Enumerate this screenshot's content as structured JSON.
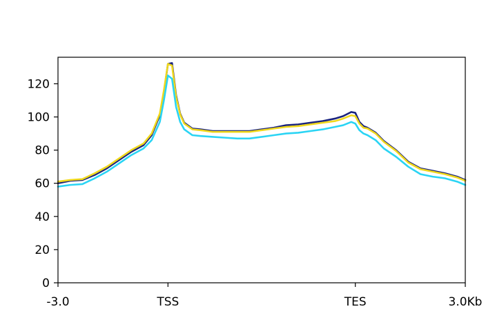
{
  "chart_data": {
    "type": "line",
    "title": "",
    "xlabel": "",
    "ylabel": "",
    "ylim": [
      0,
      136
    ],
    "yticks": [
      0,
      20,
      40,
      60,
      80,
      100,
      120
    ],
    "ytick_labels": [
      "0",
      "20",
      "40",
      "60",
      "80",
      "100",
      "120"
    ],
    "xlim": [
      0,
      100
    ],
    "xticks": [
      0,
      27,
      73,
      100
    ],
    "xtick_labels": [
      "-3.0",
      "TSS",
      "TES",
      "3.0Kb"
    ],
    "grid": false,
    "legend": "none",
    "series": [
      {
        "color": "#1a237e",
        "x": [
          0,
          3,
          6,
          9,
          12,
          15,
          18,
          21,
          23,
          25,
          26,
          27,
          28,
          29,
          30,
          31,
          33,
          35,
          38,
          41,
          44,
          47,
          50,
          53,
          56,
          59,
          62,
          65,
          68,
          70,
          72,
          73,
          74,
          75,
          76,
          78,
          80,
          83,
          86,
          89,
          92,
          95,
          98,
          100
        ],
        "y": [
          60,
          61.5,
          62,
          65,
          69,
          74,
          79,
          83,
          89,
          101,
          115,
          132,
          132.5,
          113,
          102,
          96.5,
          93,
          92.5,
          91.5,
          91.5,
          91.5,
          91.5,
          92.5,
          93.5,
          95,
          95.5,
          96.5,
          97.5,
          99,
          100.5,
          103,
          102.5,
          97,
          94.5,
          93.5,
          90.5,
          85.5,
          80,
          73,
          69,
          67.5,
          66,
          64,
          62
        ]
      },
      {
        "color": "#f0d81c",
        "x": [
          0,
          3,
          6,
          9,
          12,
          15,
          18,
          21,
          23,
          25,
          26,
          27,
          28,
          29,
          30,
          31,
          33,
          35,
          38,
          41,
          44,
          47,
          50,
          53,
          56,
          59,
          62,
          65,
          68,
          70,
          72,
          73,
          74,
          75,
          76,
          78,
          80,
          83,
          86,
          89,
          92,
          95,
          98,
          100
        ],
        "y": [
          61,
          62,
          62.5,
          66,
          70,
          75,
          80,
          84,
          90,
          102,
          116,
          132,
          131,
          112,
          101.5,
          96,
          92.5,
          92,
          91,
          91,
          91,
          91,
          92,
          93,
          94,
          94.5,
          95.5,
          96.5,
          97.5,
          99,
          101,
          100.5,
          96,
          93.5,
          93,
          90,
          85,
          79.5,
          72.5,
          68.5,
          67,
          65.5,
          63.5,
          61.5
        ]
      },
      {
        "color": "#2ad4f4",
        "x": [
          0,
          3,
          6,
          9,
          12,
          15,
          18,
          21,
          23,
          25,
          26,
          27,
          28,
          29,
          30,
          31,
          33,
          35,
          38,
          41,
          44,
          47,
          50,
          53,
          56,
          59,
          62,
          65,
          68,
          70,
          72,
          73,
          74,
          75,
          76,
          78,
          80,
          83,
          86,
          89,
          92,
          95,
          98,
          100
        ],
        "y": [
          58,
          59,
          59.5,
          63,
          67,
          72,
          77,
          81,
          86,
          97,
          110,
          125,
          123,
          106,
          97,
          92.5,
          89,
          88.5,
          88,
          87.5,
          87,
          87,
          88,
          89,
          90,
          90.5,
          91.5,
          92.5,
          94,
          95,
          97,
          96,
          92,
          90,
          89,
          86,
          81,
          76,
          70,
          65.5,
          64,
          63,
          61,
          59
        ]
      }
    ]
  }
}
